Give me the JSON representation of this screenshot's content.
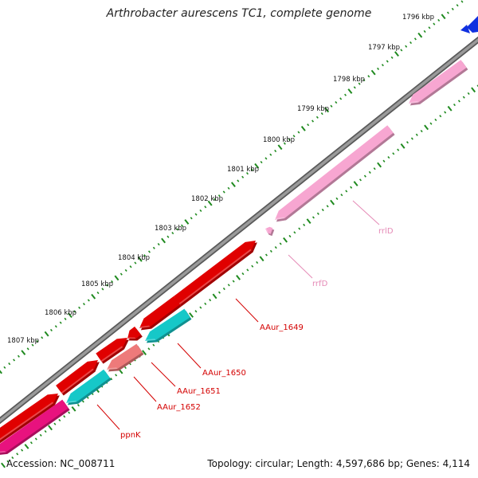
{
  "title": "Arthrobacter aurescens TC1, complete genome",
  "accession": "Accession: NC_008711",
  "summary": "Topology: circular; Length: 4,597,686 bp; Genes: 4,114",
  "colors": {
    "backbone": "#8a8a8a",
    "tick": "#1f8a1f",
    "cds_forward": "#e00000",
    "cds_reverse_cyan": "#16c8c8",
    "cds_pink_red": "#ee7a7a",
    "cds_magenta": "#e8127e",
    "rrna": "#f7a6d1",
    "blue_feature": "#1030e0"
  },
  "scale_labels": [
    "1796 kbp",
    "1797 kbp",
    "1798 kbp",
    "1799 kbp",
    "1800 kbp",
    "1801 kbp",
    "1802 kbp",
    "1803 kbp",
    "1804 kbp",
    "1805 kbp",
    "1806 kbp",
    "1807 kbp"
  ],
  "features": [
    {
      "label": "rrlD",
      "type": "rRNA",
      "strand": "reverse",
      "color": "#e58ab6"
    },
    {
      "label": "rrfD",
      "type": "rRNA",
      "strand": "reverse",
      "color": "#e58ab6"
    },
    {
      "label": "AAur_1649",
      "type": "CDS",
      "strand": "forward",
      "color": "#d40000"
    },
    {
      "label": "AAur_1650",
      "type": "CDS",
      "strand": "reverse",
      "color": "#d40000"
    },
    {
      "label": "AAur_1651",
      "type": "CDS",
      "strand": "forward",
      "color": "#d40000"
    },
    {
      "label": "AAur_1652",
      "type": "CDS",
      "strand": "reverse",
      "color": "#d40000"
    },
    {
      "label": "ppnK",
      "type": "CDS",
      "strand": "reverse",
      "color": "#d40000"
    }
  ]
}
